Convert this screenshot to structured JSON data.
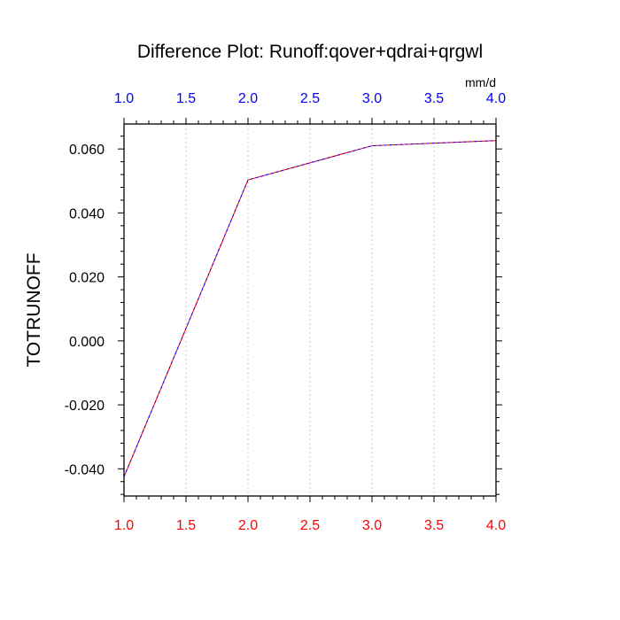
{
  "chart_data": {
    "type": "line",
    "title": "Difference Plot: Runoff:qover+qdrai+qrgwl",
    "units": "mm/d",
    "ylabel": "TOTRUNOFF",
    "xlabel": "",
    "xlim": [
      1.0,
      4.0
    ],
    "ylim": [
      -0.0485,
      0.0678
    ],
    "x_ticks": [
      1.0,
      1.5,
      2.0,
      2.5,
      3.0,
      3.5,
      4.0
    ],
    "x_tick_labels": [
      "1.0",
      "1.5",
      "2.0",
      "2.5",
      "3.0",
      "3.5",
      "4.0"
    ],
    "y_ticks": [
      -0.04,
      -0.02,
      0.0,
      0.02,
      0.04,
      0.06
    ],
    "y_tick_labels": [
      "-0.040",
      "-0.020",
      "0.000",
      "0.020",
      "0.040",
      "0.060"
    ],
    "grid": "vertical dotted",
    "bottom_axis_color": "#ff0000",
    "top_axis_color": "#0000ff",
    "series": [
      {
        "color": "#ff0000",
        "x": [
          1.0,
          2.0,
          3.0,
          4.0
        ],
        "values": [
          -0.0425,
          0.0503,
          0.061,
          0.0626
        ]
      },
      {
        "color": "#0000ff",
        "dashed": true,
        "x": [
          1.0,
          2.0,
          3.0,
          4.0
        ],
        "values": [
          -0.0425,
          0.0503,
          0.061,
          0.0626
        ]
      }
    ]
  }
}
